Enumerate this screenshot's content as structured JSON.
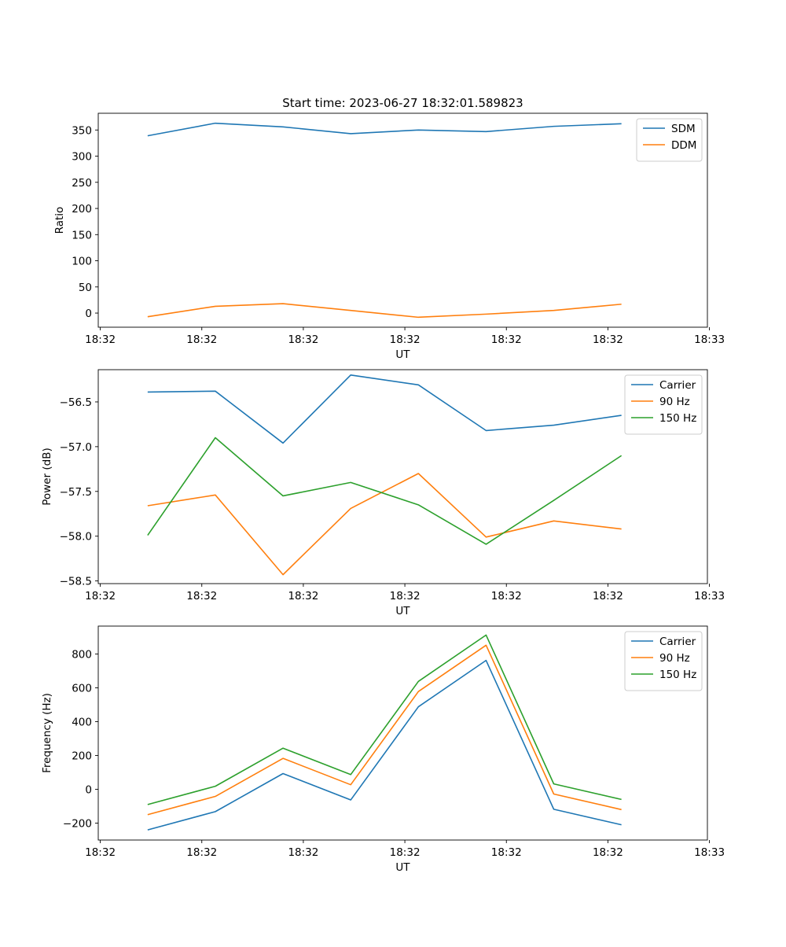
{
  "chart_data": [
    {
      "type": "line",
      "title": "Start time: 2023-06-27 18:32:01.589823",
      "xlabel": "UT",
      "ylabel": "Ratio",
      "x": [
        1,
        2,
        3,
        4,
        5,
        6,
        7,
        8
      ],
      "xlim": [
        0.27,
        9.27
      ],
      "xticks": [
        0.3,
        1.8,
        3.3,
        4.8,
        6.3,
        7.8,
        9.3
      ],
      "xticklabels": [
        "18:32",
        "18:32",
        "18:32",
        "18:32",
        "18:32",
        "18:32",
        "18:33"
      ],
      "ylim": [
        -27,
        382
      ],
      "yticks": [
        0,
        50,
        100,
        150,
        200,
        250,
        300,
        350
      ],
      "yticklabels": [
        "0",
        "50",
        "100",
        "150",
        "200",
        "250",
        "300",
        "350"
      ],
      "legend": "top-right",
      "grid": false,
      "series": [
        {
          "name": "SDM",
          "color": "#1f77b4",
          "values": [
            339,
            363,
            356,
            343,
            350,
            347,
            357,
            362
          ]
        },
        {
          "name": "DDM",
          "color": "#ff7f0e",
          "values": [
            -7,
            13,
            18,
            5,
            -8,
            -2,
            5,
            17
          ]
        }
      ]
    },
    {
      "type": "line",
      "title": "",
      "xlabel": "UT",
      "ylabel": "Power (dB)",
      "x": [
        1,
        2,
        3,
        4,
        5,
        6,
        7,
        8
      ],
      "xlim": [
        0.27,
        9.27
      ],
      "xticks": [
        0.3,
        1.8,
        3.3,
        4.8,
        6.3,
        7.8,
        9.3
      ],
      "xticklabels": [
        "18:32",
        "18:32",
        "18:32",
        "18:32",
        "18:32",
        "18:32",
        "18:33"
      ],
      "ylim": [
        -58.53,
        -56.14
      ],
      "yticks": [
        -58.5,
        -58.0,
        -57.5,
        -57.0,
        -56.5
      ],
      "yticklabels": [
        "−58.5",
        "−58.0",
        "−57.5",
        "−57.0",
        "−56.5"
      ],
      "legend": "top-right",
      "grid": false,
      "series": [
        {
          "name": "Carrier",
          "color": "#1f77b4",
          "values": [
            -56.39,
            -56.38,
            -56.96,
            -56.2,
            -56.31,
            -56.82,
            -56.76,
            -56.65
          ]
        },
        {
          "name": "90 Hz",
          "color": "#ff7f0e",
          "values": [
            -57.66,
            -57.54,
            -58.43,
            -57.69,
            -57.3,
            -58.01,
            -57.83,
            -57.92
          ]
        },
        {
          "name": "150 Hz",
          "color": "#2ca02c",
          "values": [
            -57.99,
            -56.9,
            -57.55,
            -57.4,
            -57.65,
            -58.09,
            -57.6,
            -57.1
          ]
        }
      ]
    },
    {
      "type": "line",
      "title": "",
      "xlabel": "UT",
      "ylabel": "Frequency (Hz)",
      "x": [
        1,
        2,
        3,
        4,
        5,
        6,
        7,
        8
      ],
      "xlim": [
        0.27,
        9.27
      ],
      "xticks": [
        0.3,
        1.8,
        3.3,
        4.8,
        6.3,
        7.8,
        9.3
      ],
      "xticklabels": [
        "18:32",
        "18:32",
        "18:32",
        "18:32",
        "18:32",
        "18:32",
        "18:33"
      ],
      "ylim": [
        -300,
        965
      ],
      "yticks": [
        -200,
        0,
        200,
        400,
        600,
        800
      ],
      "yticklabels": [
        "−200",
        "0",
        "200",
        "400",
        "600",
        "800"
      ],
      "legend": "top-right",
      "grid": false,
      "series": [
        {
          "name": "Carrier",
          "color": "#1f77b4",
          "values": [
            -240,
            -132,
            93,
            -63,
            488,
            762,
            -118,
            -210
          ]
        },
        {
          "name": "90 Hz",
          "color": "#ff7f0e",
          "values": [
            -150,
            -42,
            183,
            27,
            578,
            852,
            -28,
            -120
          ]
        },
        {
          "name": "150 Hz",
          "color": "#2ca02c",
          "values": [
            -90,
            18,
            243,
            87,
            638,
            912,
            32,
            -60
          ]
        }
      ]
    }
  ]
}
